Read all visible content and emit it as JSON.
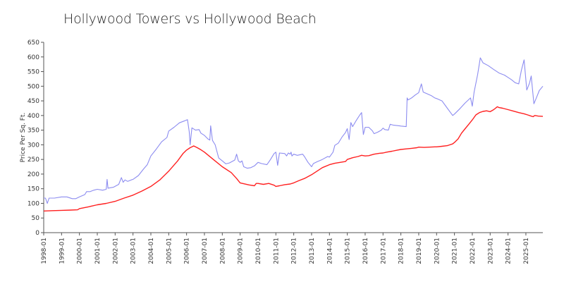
{
  "chart_data": {
    "type": "line",
    "title": "Hollywood Towers vs Hollywood Beach",
    "xlabel": "",
    "ylabel": "Price Per Sq. Ft.",
    "ylim": [
      0,
      650
    ],
    "yticks": [
      0,
      50,
      100,
      150,
      200,
      250,
      300,
      350,
      400,
      450,
      500,
      550,
      600,
      650
    ],
    "xlim": [
      1998.0,
      2025.95
    ],
    "x_tick_labels": [
      "1998-01",
      "1999-01",
      "2000-01",
      "2001-01",
      "2002-01",
      "2003-01",
      "2004-01",
      "2005-01",
      "2006-01",
      "2007-01",
      "2008-01",
      "2009-01",
      "2010-01",
      "2011-01",
      "2012-01",
      "2013-01",
      "2014-01",
      "2015-01",
      "2016-01",
      "2017-01",
      "2018-01",
      "2019-01",
      "2020-01",
      "2021-01",
      "2022-01",
      "2023-01",
      "2024-01",
      "2025-01"
    ],
    "grid": false,
    "series": [
      {
        "name": "Hollywood Towers",
        "color": "#8c8cf0",
        "points": [
          [
            1998.0,
            118
          ],
          [
            1998.1,
            118
          ],
          [
            1998.2,
            100
          ],
          [
            1998.3,
            118
          ],
          [
            1998.6,
            118
          ],
          [
            1999.0,
            122
          ],
          [
            1999.3,
            122
          ],
          [
            1999.6,
            116
          ],
          [
            1999.8,
            116
          ],
          [
            2000.0,
            122
          ],
          [
            2000.3,
            130
          ],
          [
            2000.4,
            140
          ],
          [
            2000.6,
            140
          ],
          [
            2000.8,
            145
          ],
          [
            2001.0,
            148
          ],
          [
            2001.3,
            145
          ],
          [
            2001.5,
            148
          ],
          [
            2001.55,
            182
          ],
          [
            2001.6,
            152
          ],
          [
            2001.9,
            155
          ],
          [
            2002.2,
            165
          ],
          [
            2002.35,
            188
          ],
          [
            2002.45,
            172
          ],
          [
            2002.55,
            180
          ],
          [
            2002.7,
            175
          ],
          [
            2002.9,
            180
          ],
          [
            2003.0,
            182
          ],
          [
            2003.3,
            195
          ],
          [
            2003.6,
            218
          ],
          [
            2003.8,
            232
          ],
          [
            2004.0,
            262
          ],
          [
            2004.3,
            285
          ],
          [
            2004.6,
            310
          ],
          [
            2004.9,
            325
          ],
          [
            2005.0,
            347
          ],
          [
            2005.3,
            360
          ],
          [
            2005.6,
            375
          ],
          [
            2005.9,
            382
          ],
          [
            2006.05,
            386
          ],
          [
            2006.15,
            345
          ],
          [
            2006.2,
            300
          ],
          [
            2006.3,
            358
          ],
          [
            2006.5,
            350
          ],
          [
            2006.7,
            352
          ],
          [
            2006.8,
            340
          ],
          [
            2007.0,
            332
          ],
          [
            2007.2,
            320
          ],
          [
            2007.3,
            316
          ],
          [
            2007.35,
            365
          ],
          [
            2007.45,
            315
          ],
          [
            2007.6,
            300
          ],
          [
            2007.8,
            255
          ],
          [
            2008.0,
            245
          ],
          [
            2008.2,
            235
          ],
          [
            2008.4,
            238
          ],
          [
            2008.7,
            248
          ],
          [
            2008.8,
            268
          ],
          [
            2008.9,
            245
          ],
          [
            2009.0,
            240
          ],
          [
            2009.1,
            245
          ],
          [
            2009.2,
            225
          ],
          [
            2009.4,
            220
          ],
          [
            2009.6,
            222
          ],
          [
            2009.8,
            228
          ],
          [
            2010.0,
            240
          ],
          [
            2010.2,
            236
          ],
          [
            2010.5,
            232
          ],
          [
            2010.7,
            250
          ],
          [
            2010.9,
            270
          ],
          [
            2011.0,
            275
          ],
          [
            2011.1,
            230
          ],
          [
            2011.2,
            272
          ],
          [
            2011.5,
            270
          ],
          [
            2011.6,
            262
          ],
          [
            2011.7,
            272
          ],
          [
            2011.8,
            268
          ],
          [
            2011.85,
            275
          ],
          [
            2011.9,
            262
          ],
          [
            2012.0,
            268
          ],
          [
            2012.2,
            264
          ],
          [
            2012.5,
            268
          ],
          [
            2012.6,
            260
          ],
          [
            2012.8,
            240
          ],
          [
            2013.0,
            225
          ],
          [
            2013.1,
            236
          ],
          [
            2013.3,
            242
          ],
          [
            2013.6,
            250
          ],
          [
            2013.9,
            260
          ],
          [
            2014.0,
            258
          ],
          [
            2014.2,
            275
          ],
          [
            2014.3,
            298
          ],
          [
            2014.5,
            306
          ],
          [
            2014.7,
            326
          ],
          [
            2014.9,
            342
          ],
          [
            2015.0,
            355
          ],
          [
            2015.1,
            318
          ],
          [
            2015.2,
            376
          ],
          [
            2015.3,
            362
          ],
          [
            2015.5,
            383
          ],
          [
            2015.7,
            402
          ],
          [
            2015.8,
            410
          ],
          [
            2015.9,
            335
          ],
          [
            2016.0,
            360
          ],
          [
            2016.2,
            360
          ],
          [
            2016.4,
            348
          ],
          [
            2016.5,
            338
          ],
          [
            2016.7,
            343
          ],
          [
            2016.9,
            350
          ],
          [
            2017.0,
            357
          ],
          [
            2017.1,
            352
          ],
          [
            2017.3,
            350
          ],
          [
            2017.4,
            370
          ],
          [
            2017.6,
            367
          ],
          [
            2017.9,
            365
          ],
          [
            2018.0,
            364
          ],
          [
            2018.3,
            362
          ],
          [
            2018.35,
            460
          ],
          [
            2018.4,
            453
          ],
          [
            2018.6,
            460
          ],
          [
            2018.8,
            470
          ],
          [
            2019.0,
            478
          ],
          [
            2019.15,
            508
          ],
          [
            2019.25,
            480
          ],
          [
            2019.4,
            476
          ],
          [
            2019.7,
            468
          ],
          [
            2019.9,
            460
          ],
          [
            2020.0,
            458
          ],
          [
            2020.3,
            450
          ],
          [
            2020.6,
            425
          ],
          [
            2020.9,
            400
          ],
          [
            2021.0,
            405
          ],
          [
            2021.3,
            423
          ],
          [
            2021.6,
            443
          ],
          [
            2021.9,
            460
          ],
          [
            2022.0,
            432
          ],
          [
            2022.1,
            480
          ],
          [
            2022.3,
            540
          ],
          [
            2022.45,
            597
          ],
          [
            2022.6,
            580
          ],
          [
            2022.9,
            570
          ],
          [
            2023.2,
            557
          ],
          [
            2023.5,
            545
          ],
          [
            2023.8,
            538
          ],
          [
            2024.0,
            530
          ],
          [
            2024.2,
            522
          ],
          [
            2024.4,
            512
          ],
          [
            2024.6,
            508
          ],
          [
            2024.75,
            555
          ],
          [
            2024.9,
            590
          ],
          [
            2025.05,
            487
          ],
          [
            2025.2,
            510
          ],
          [
            2025.3,
            535
          ],
          [
            2025.45,
            440
          ],
          [
            2025.6,
            462
          ],
          [
            2025.75,
            485
          ],
          [
            2025.95,
            500
          ]
        ]
      },
      {
        "name": "Hollywood Beach",
        "color": "#ff2020",
        "points": [
          [
            1998.0,
            74
          ],
          [
            1998.5,
            75
          ],
          [
            1999.0,
            76
          ],
          [
            1999.5,
            77
          ],
          [
            1999.9,
            78
          ],
          [
            2000.0,
            82
          ],
          [
            2000.5,
            88
          ],
          [
            2001.0,
            95
          ],
          [
            2001.5,
            100
          ],
          [
            2002.0,
            107
          ],
          [
            2002.5,
            118
          ],
          [
            2003.0,
            128
          ],
          [
            2003.5,
            142
          ],
          [
            2004.0,
            158
          ],
          [
            2004.5,
            180
          ],
          [
            2005.0,
            210
          ],
          [
            2005.5,
            245
          ],
          [
            2005.8,
            270
          ],
          [
            2006.0,
            282
          ],
          [
            2006.2,
            290
          ],
          [
            2006.4,
            296
          ],
          [
            2006.6,
            290
          ],
          [
            2006.8,
            283
          ],
          [
            2007.0,
            275
          ],
          [
            2007.5,
            250
          ],
          [
            2008.0,
            225
          ],
          [
            2008.5,
            205
          ],
          [
            2008.8,
            185
          ],
          [
            2009.0,
            170
          ],
          [
            2009.5,
            163
          ],
          [
            2009.8,
            160
          ],
          [
            2009.9,
            168
          ],
          [
            2010.0,
            168
          ],
          [
            2010.3,
            165
          ],
          [
            2010.6,
            168
          ],
          [
            2010.9,
            162
          ],
          [
            2011.0,
            158
          ],
          [
            2011.2,
            160
          ],
          [
            2011.5,
            164
          ],
          [
            2011.8,
            166
          ],
          [
            2012.0,
            170
          ],
          [
            2012.3,
            178
          ],
          [
            2012.6,
            185
          ],
          [
            2013.0,
            198
          ],
          [
            2013.3,
            210
          ],
          [
            2013.6,
            222
          ],
          [
            2014.0,
            232
          ],
          [
            2014.3,
            237
          ],
          [
            2014.6,
            240
          ],
          [
            2014.9,
            243
          ],
          [
            2015.0,
            250
          ],
          [
            2015.3,
            256
          ],
          [
            2015.6,
            260
          ],
          [
            2015.8,
            264
          ],
          [
            2016.0,
            262
          ],
          [
            2016.2,
            263
          ],
          [
            2016.5,
            268
          ],
          [
            2016.8,
            271
          ],
          [
            2017.0,
            272
          ],
          [
            2017.2,
            275
          ],
          [
            2017.5,
            278
          ],
          [
            2017.8,
            282
          ],
          [
            2018.0,
            284
          ],
          [
            2018.3,
            286
          ],
          [
            2018.6,
            288
          ],
          [
            2018.9,
            290
          ],
          [
            2019.0,
            292
          ],
          [
            2019.3,
            291
          ],
          [
            2019.6,
            292
          ],
          [
            2019.9,
            293
          ],
          [
            2020.0,
            293
          ],
          [
            2020.3,
            295
          ],
          [
            2020.6,
            297
          ],
          [
            2020.9,
            303
          ],
          [
            2021.0,
            308
          ],
          [
            2021.2,
            320
          ],
          [
            2021.4,
            340
          ],
          [
            2021.6,
            355
          ],
          [
            2021.8,
            370
          ],
          [
            2022.0,
            385
          ],
          [
            2022.2,
            402
          ],
          [
            2022.4,
            410
          ],
          [
            2022.6,
            414
          ],
          [
            2022.8,
            416
          ],
          [
            2023.0,
            413
          ],
          [
            2023.2,
            420
          ],
          [
            2023.4,
            430
          ],
          [
            2023.5,
            427
          ],
          [
            2023.7,
            425
          ],
          [
            2024.0,
            420
          ],
          [
            2024.3,
            415
          ],
          [
            2024.6,
            410
          ],
          [
            2024.9,
            406
          ],
          [
            2025.1,
            402
          ],
          [
            2025.3,
            398
          ],
          [
            2025.4,
            396
          ],
          [
            2025.5,
            400
          ],
          [
            2025.7,
            398
          ],
          [
            2025.95,
            397
          ]
        ]
      }
    ]
  }
}
